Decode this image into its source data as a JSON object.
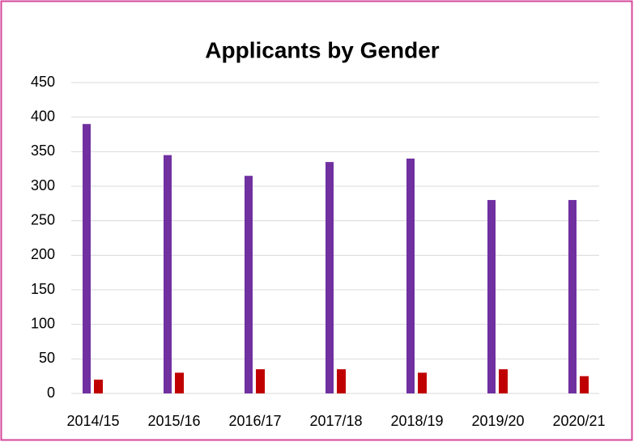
{
  "chart_data": {
    "type": "bar",
    "title": "Applicants by Gender",
    "categories": [
      "2014/15",
      "2015/16",
      "2016/17",
      "2017/18",
      "2018/19",
      "2019/20",
      "2020/21"
    ],
    "series": [
      {
        "color": "#7030a0",
        "values": [
          390,
          345,
          315,
          335,
          340,
          280,
          280
        ]
      },
      {
        "color": "#c00000",
        "values": [
          20,
          30,
          35,
          35,
          30,
          35,
          25
        ]
      }
    ],
    "ylim": [
      0,
      450
    ],
    "yticks": [
      0,
      50,
      100,
      150,
      200,
      250,
      300,
      350,
      400,
      450
    ],
    "grid": true
  }
}
